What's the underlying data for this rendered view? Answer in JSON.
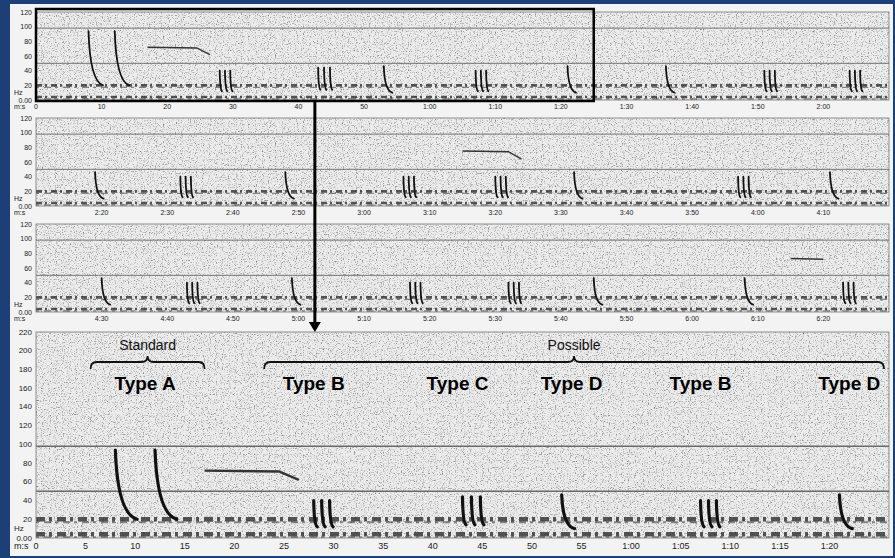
{
  "chart_data": [
    {
      "type": "spectrogram",
      "x_label": "m:s",
      "y_label": "Hz",
      "xlim": [
        0,
        130
      ],
      "xticks": [
        0,
        10,
        20,
        30,
        40,
        50,
        {
          "value": 60,
          "label": "1:00"
        },
        {
          "value": 70,
          "label": "1:10"
        },
        {
          "value": 80,
          "label": "1:20"
        },
        {
          "value": 90,
          "label": "1:30"
        },
        {
          "value": 100,
          "label": "1:40"
        },
        {
          "value": 110,
          "label": "1:50"
        },
        {
          "value": 120,
          "label": "2:00"
        }
      ],
      "ylim": [
        0,
        120
      ],
      "yticks": [
        {
          "value": 0,
          "label": "0.00"
        },
        20,
        40,
        60,
        80,
        100,
        120
      ],
      "noise_bands": [
        4,
        20
      ],
      "noise_lines": [
        50,
        98
      ],
      "calls": [
        {
          "t": 8,
          "type": "A"
        },
        {
          "t": 12,
          "type": "A"
        },
        {
          "t": 28,
          "type": "B"
        },
        {
          "t": 43,
          "type": "C"
        },
        {
          "t": 53,
          "type": "D"
        },
        {
          "t": 67,
          "type": "B"
        },
        {
          "t": 81,
          "type": "D"
        },
        {
          "t": 96,
          "type": "D"
        },
        {
          "t": 111,
          "type": "B"
        },
        {
          "t": 124,
          "type": "B"
        }
      ],
      "tones": [
        {
          "t": [
            17,
            24.5,
            26.5
          ],
          "hz": [
            72,
            71,
            62
          ]
        }
      ],
      "zoom_xlim": [
        0,
        85
      ]
    },
    {
      "type": "spectrogram",
      "x_label": "m:s",
      "y_label": "Hz",
      "xlim": [
        130,
        260
      ],
      "xticks": [
        {
          "value": 140,
          "label": "2:20"
        },
        {
          "value": 150,
          "label": "2:30"
        },
        {
          "value": 160,
          "label": "2:40"
        },
        {
          "value": 170,
          "label": "2:50"
        },
        {
          "value": 180,
          "label": "3:00"
        },
        {
          "value": 190,
          "label": "3:10"
        },
        {
          "value": 200,
          "label": "3:20"
        },
        {
          "value": 210,
          "label": "3:30"
        },
        {
          "value": 220,
          "label": "3:40"
        },
        {
          "value": 230,
          "label": "3:50"
        },
        {
          "value": 240,
          "label": "4:00"
        },
        {
          "value": 250,
          "label": "4:10"
        }
      ],
      "ylim": [
        0,
        120
      ],
      "yticks": [
        {
          "value": 0,
          "label": "0.00"
        },
        20,
        40,
        60,
        80,
        100,
        120
      ],
      "noise_bands": [
        4,
        20
      ],
      "noise_lines": [
        50,
        98
      ],
      "calls": [
        {
          "t": 139,
          "type": "D"
        },
        {
          "t": 152,
          "type": "B"
        },
        {
          "t": 168,
          "type": "D"
        },
        {
          "t": 186,
          "type": "B"
        },
        {
          "t": 200,
          "type": "B"
        },
        {
          "t": 212,
          "type": "D"
        },
        {
          "t": 237,
          "type": "B"
        },
        {
          "t": 251,
          "type": "D"
        }
      ],
      "tones": [
        {
          "t": [
            195,
            202,
            204
          ],
          "hz": [
            75,
            74,
            64
          ]
        }
      ]
    },
    {
      "type": "spectrogram",
      "x_label": "m:s",
      "y_label": "Hz",
      "xlim": [
        260,
        390
      ],
      "xticks": [
        {
          "value": 270,
          "label": "4:30"
        },
        {
          "value": 280,
          "label": "4:40"
        },
        {
          "value": 290,
          "label": "4:50"
        },
        {
          "value": 300,
          "label": "5:00"
        },
        {
          "value": 310,
          "label": "5:10"
        },
        {
          "value": 320,
          "label": "5:20"
        },
        {
          "value": 330,
          "label": "5:30"
        },
        {
          "value": 340,
          "label": "5:40"
        },
        {
          "value": 350,
          "label": "5:50"
        },
        {
          "value": 360,
          "label": "6:00"
        },
        {
          "value": 370,
          "label": "6:10"
        },
        {
          "value": 380,
          "label": "6:20"
        }
      ],
      "ylim": [
        0,
        120
      ],
      "yticks": [
        {
          "value": 0,
          "label": "0.00"
        },
        20,
        40,
        60,
        80,
        100,
        120
      ],
      "noise_bands": [
        4,
        20
      ],
      "noise_lines": [
        50,
        98
      ],
      "calls": [
        {
          "t": 270,
          "type": "D"
        },
        {
          "t": 283,
          "type": "B"
        },
        {
          "t": 299,
          "type": "D"
        },
        {
          "t": 317,
          "type": "B"
        },
        {
          "t": 332,
          "type": "B"
        },
        {
          "t": 345,
          "type": "D"
        },
        {
          "t": 368,
          "type": "D"
        },
        {
          "t": 383,
          "type": "B"
        }
      ],
      "tones": [
        {
          "t": [
            375,
            380
          ],
          "hz": [
            73,
            72
          ]
        }
      ]
    },
    {
      "type": "spectrogram",
      "x_label": "m:s",
      "y_label": "Hz",
      "xlim": [
        0,
        86
      ],
      "xticks": [
        0,
        5,
        10,
        15,
        20,
        25,
        30,
        35,
        40,
        45,
        50,
        55,
        {
          "value": 60,
          "label": "1:00"
        },
        {
          "value": 65,
          "label": "1:05"
        },
        {
          "value": 70,
          "label": "1:10"
        },
        {
          "value": 75,
          "label": "1:15"
        },
        {
          "value": 80,
          "label": "1:20"
        }
      ],
      "ylim": [
        0,
        220
      ],
      "yticks": [
        {
          "value": 0,
          "label": "0.00"
        },
        20,
        40,
        60,
        80,
        100,
        120,
        140,
        160,
        180,
        200,
        220
      ],
      "noise_bands": [
        4,
        20
      ],
      "noise_lines": [
        50,
        98
      ],
      "calls": [
        {
          "t": 8,
          "type": "A"
        },
        {
          "t": 12,
          "type": "A"
        },
        {
          "t": 28,
          "type": "B"
        },
        {
          "t": 43,
          "type": "C"
        },
        {
          "t": 53,
          "type": "D"
        },
        {
          "t": 67,
          "type": "B"
        },
        {
          "t": 81,
          "type": "D"
        }
      ],
      "tones": [
        {
          "t": [
            17,
            24.5,
            26.5
          ],
          "hz": [
            72,
            71,
            62
          ]
        }
      ],
      "groups": [
        {
          "text": "Standard",
          "t": [
            5.5,
            17
          ]
        },
        {
          "text": "Possible",
          "t": [
            23,
            85.5
          ]
        }
      ],
      "annotations": [
        {
          "text": "Type A",
          "t": 11
        },
        {
          "text": "Type B",
          "t": 28
        },
        {
          "text": "Type C",
          "t": 42.5
        },
        {
          "text": "Type D",
          "t": 54
        },
        {
          "text": "Type B",
          "t": 67
        },
        {
          "text": "Type D",
          "t": 82
        }
      ]
    }
  ],
  "call_types": {
    "A": {
      "hz": [
        94,
        20
      ],
      "duration": 2.2,
      "pulses": 1,
      "spacing": 0
    },
    "B": {
      "hz": [
        40,
        12
      ],
      "duration": 0.35,
      "pulses": 3,
      "spacing": 0.8
    },
    "C": {
      "hz": [
        44,
        14
      ],
      "duration": 0.35,
      "pulses": 3,
      "spacing": 0.9
    },
    "D": {
      "hz": [
        46,
        10
      ],
      "duration": 1.3,
      "pulses": 1,
      "spacing": 0
    }
  }
}
